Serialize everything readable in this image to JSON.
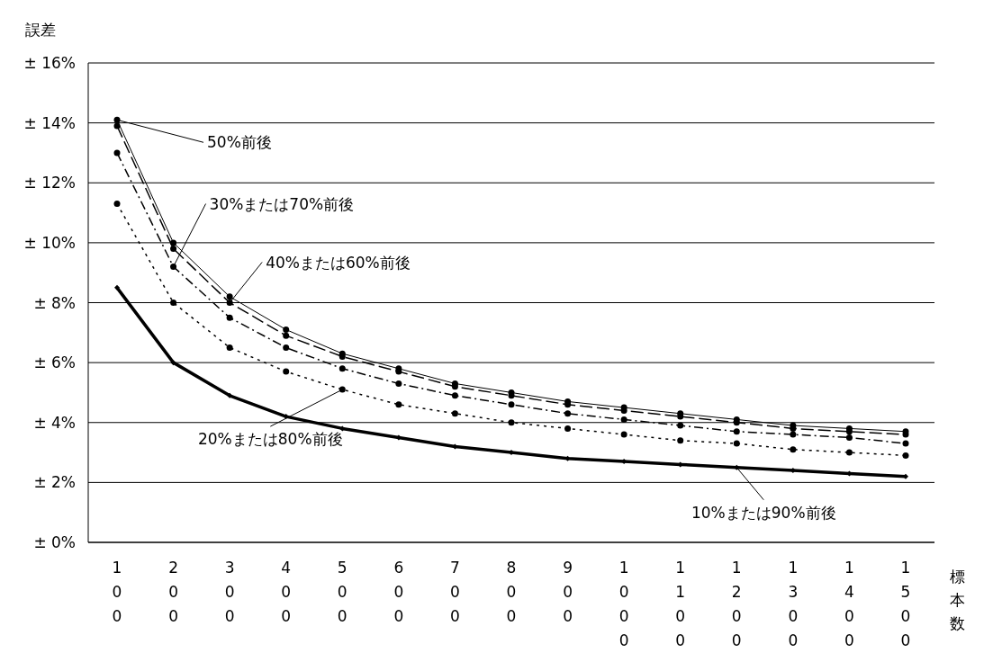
{
  "chart_data": {
    "type": "line",
    "xlabel": "標本数",
    "ylabel": "誤差",
    "categories": [
      "100",
      "200",
      "300",
      "400",
      "500",
      "600",
      "700",
      "800",
      "900",
      "1000",
      "1100",
      "1200",
      "1300",
      "1400",
      "1500"
    ],
    "series": [
      {
        "name": "50%前後",
        "color": "#000000",
        "line_style": "solid",
        "marker": "circle",
        "values": [
          14.1,
          10.0,
          8.2,
          7.1,
          6.3,
          5.8,
          5.3,
          5.0,
          4.7,
          4.5,
          4.3,
          4.1,
          3.9,
          3.8,
          3.7
        ]
      },
      {
        "name": "40%または60%前後",
        "color": "#000000",
        "line_style": "dashed",
        "marker": "circle",
        "values": [
          13.9,
          9.8,
          8.0,
          6.9,
          6.2,
          5.7,
          5.2,
          4.9,
          4.6,
          4.4,
          4.2,
          4.0,
          3.8,
          3.7,
          3.6
        ]
      },
      {
        "name": "30%または70%前後",
        "color": "#000000",
        "line_style": "dashdot",
        "marker": "circle",
        "values": [
          13.0,
          9.2,
          7.5,
          6.5,
          5.8,
          5.3,
          4.9,
          4.6,
          4.3,
          4.1,
          3.9,
          3.7,
          3.6,
          3.5,
          3.3
        ]
      },
      {
        "name": "20%または80%前後",
        "color": "#000000",
        "line_style": "dotted",
        "marker": "circle",
        "values": [
          11.3,
          8.0,
          6.5,
          5.7,
          5.1,
          4.6,
          4.3,
          4.0,
          3.8,
          3.6,
          3.4,
          3.3,
          3.1,
          3.0,
          2.9
        ]
      },
      {
        "name": "10%または90%前後",
        "color": "#000000",
        "line_style": "solid",
        "marker": "diamond",
        "values": [
          8.5,
          6.0,
          4.9,
          4.2,
          3.8,
          3.5,
          3.2,
          3.0,
          2.8,
          2.7,
          2.6,
          2.5,
          2.4,
          2.3,
          2.2
        ]
      }
    ],
    "ylim": [
      0,
      16
    ],
    "yticks": [
      {
        "value": 0,
        "label": "± 0%"
      },
      {
        "value": 2,
        "label": "± 2%"
      },
      {
        "value": 4,
        "label": "± 4%"
      },
      {
        "value": 6,
        "label": "± 6%"
      },
      {
        "value": 8,
        "label": "± 8%"
      },
      {
        "value": 10,
        "label": "± 10%"
      },
      {
        "value": 12,
        "label": "± 12%"
      },
      {
        "value": 14,
        "label": "± 14%"
      },
      {
        "value": 16,
        "label": "± 16%"
      }
    ],
    "grid": "y"
  }
}
